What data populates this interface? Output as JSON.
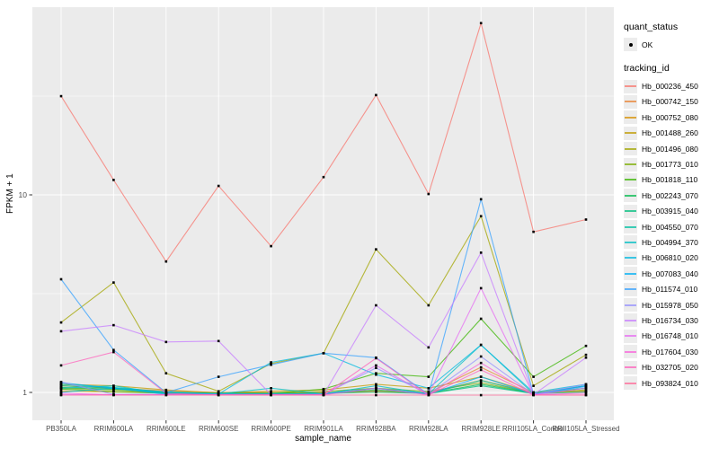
{
  "figure": {
    "panel_bg": "#ebebeb",
    "grid_color": "#ffffff",
    "tick_text_color": "#4d4d4d",
    "point_color": "#000000"
  },
  "legend": {
    "quant_status": {
      "title": "quant_status",
      "items": [
        {
          "label": "OK",
          "marker": "black-point"
        }
      ]
    },
    "tracking_id_title": "tracking_id"
  },
  "chart_data": {
    "type": "line",
    "title": "",
    "xlabel": "sample_name",
    "ylabel": "FPKM + 1",
    "y_scale": "log10",
    "y_ticks": [
      1,
      10
    ],
    "ylim": [
      0.72,
      89
    ],
    "grid": true,
    "legend_position": "right",
    "categories": [
      "PB350LA",
      "RRIM600LA",
      "RRIM600LE",
      "RRIM600SE",
      "RRIM600PE",
      "RRIM901LA",
      "RRIM928BA",
      "RRIM928LA",
      "RRIM928LE",
      "RRII105LA_Control",
      "RRII105LA_Stressed"
    ],
    "series": [
      {
        "name": "Hb_000236_450",
        "color": "#F8766D",
        "values": [
          31.6,
          11.9,
          4.6,
          11.1,
          5.5,
          12.3,
          32,
          10.1,
          74,
          6.5,
          7.5
        ]
      },
      {
        "name": "Hb_000742_150",
        "color": "#EA8331",
        "values": [
          1.08,
          1.05,
          1.02,
          1.0,
          1.0,
          1.0,
          1.02,
          1.0,
          1.34,
          1.0,
          1.02
        ]
      },
      {
        "name": "Hb_000752_080",
        "color": "#D89000",
        "values": [
          1.02,
          1.01,
          1.0,
          1.0,
          1.0,
          1.0,
          1.01,
          1.0,
          1.15,
          1.0,
          1.01
        ]
      },
      {
        "name": "Hb_001488_260",
        "color": "#C09B00",
        "values": [
          1.1,
          1.08,
          1.03,
          1.0,
          1.02,
          1.03,
          1.1,
          1.05,
          1.2,
          1.0,
          1.08
        ]
      },
      {
        "name": "Hb_001496_080",
        "color": "#A3A500",
        "values": [
          2.26,
          3.6,
          1.25,
          1.02,
          1.4,
          1.58,
          5.3,
          2.76,
          7.8,
          1.08,
          1.55
        ]
      },
      {
        "name": "Hb_001773_010",
        "color": "#7CAE00",
        "values": [
          1.05,
          1.03,
          1.0,
          1.0,
          1.0,
          1.02,
          1.05,
          1.02,
          1.12,
          1.0,
          1.03
        ]
      },
      {
        "name": "Hb_001818_110",
        "color": "#39B600",
        "values": [
          1.04,
          1.02,
          1.0,
          1.0,
          1.0,
          1.04,
          1.25,
          1.2,
          2.36,
          1.2,
          1.72
        ]
      },
      {
        "name": "Hb_002243_070",
        "color": "#00BB4E",
        "values": [
          1.06,
          1.04,
          1.01,
          1.0,
          1.0,
          1.0,
          1.03,
          1.0,
          1.1,
          1.0,
          1.05
        ]
      },
      {
        "name": "Hb_003915_040",
        "color": "#00BF7D",
        "values": [
          1.08,
          1.05,
          1.02,
          1.0,
          1.0,
          1.0,
          1.02,
          1.0,
          1.08,
          1.0,
          1.02
        ]
      },
      {
        "name": "Hb_004550_070",
        "color": "#00C1A3",
        "values": [
          1.1,
          1.06,
          1.02,
          1.0,
          1.0,
          1.0,
          1.05,
          1.0,
          1.15,
          1.0,
          1.05
        ]
      },
      {
        "name": "Hb_004994_370",
        "color": "#00BFC4",
        "values": [
          1.05,
          1.08,
          1.0,
          1.0,
          1.05,
          1.0,
          1.08,
          1.0,
          1.74,
          1.0,
          1.08
        ]
      },
      {
        "name": "Hb_006810_020",
        "color": "#00BAE0",
        "values": [
          1.02,
          1.05,
          1.02,
          1.0,
          1.42,
          1.58,
          1.23,
          1.05,
          1.74,
          1.02,
          1.1
        ]
      },
      {
        "name": "Hb_007083_040",
        "color": "#00B0F6",
        "values": [
          1.12,
          1.05,
          1.0,
          1.0,
          1.0,
          1.0,
          1.05,
          1.0,
          1.2,
          1.0,
          1.08
        ]
      },
      {
        "name": "Hb_011574_010",
        "color": "#35A2FF",
        "values": [
          3.74,
          1.64,
          1.02,
          1.2,
          1.38,
          1.58,
          1.5,
          1.0,
          9.5,
          1.0,
          1.07
        ]
      },
      {
        "name": "Hb_015978_050",
        "color": "#9590FF",
        "values": [
          1.13,
          1.0,
          1.0,
          1.0,
          1.0,
          1.0,
          1.33,
          1.0,
          1.52,
          1.0,
          1.1
        ]
      },
      {
        "name": "Hb_016734_030",
        "color": "#C77CFF",
        "values": [
          2.04,
          2.19,
          1.8,
          1.82,
          1.0,
          1.0,
          2.76,
          1.69,
          5.1,
          1.0,
          1.5
        ]
      },
      {
        "name": "Hb_016748_010",
        "color": "#E76BF3",
        "values": [
          1.0,
          1.0,
          1.0,
          1.0,
          1.0,
          1.0,
          1.37,
          1.0,
          3.37,
          1.0,
          1.05
        ]
      },
      {
        "name": "Hb_017604_030",
        "color": "#FA62DB",
        "values": [
          1.02,
          1.0,
          1.0,
          1.0,
          1.0,
          1.0,
          1.05,
          1.0,
          1.41,
          1.0,
          1.02
        ]
      },
      {
        "name": "Hb_032705_020",
        "color": "#FF62BC",
        "values": [
          1.37,
          1.6,
          1.02,
          1.0,
          1.0,
          1.0,
          1.49,
          1.0,
          1.3,
          1.0,
          1.0
        ]
      },
      {
        "name": "Hb_093824_010",
        "color": "#FF6A98",
        "values": [
          1.0,
          1.0,
          1.0,
          1.0,
          1.0,
          1.0,
          1.0,
          1.0,
          1.0,
          1.0,
          1.0
        ]
      }
    ]
  }
}
